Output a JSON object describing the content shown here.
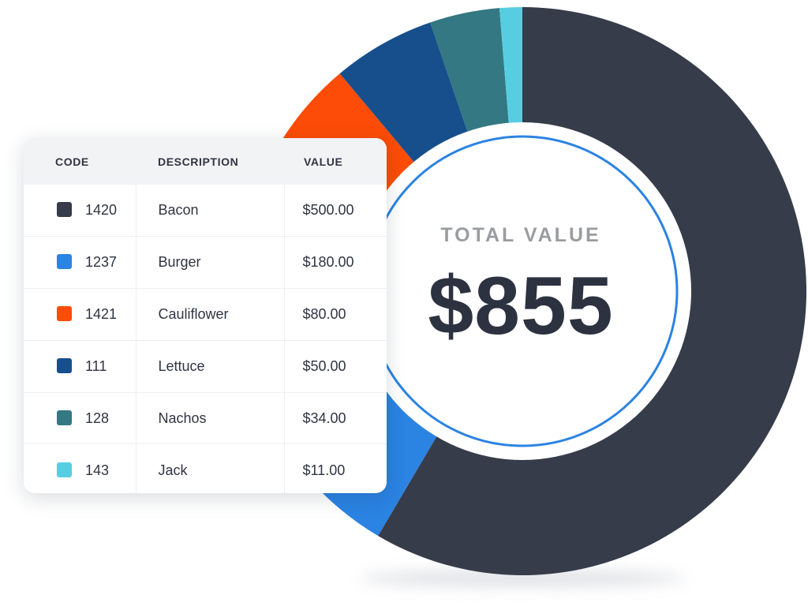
{
  "chart_data": {
    "type": "pie",
    "center_label": "TOTAL VALUE",
    "center_value": "$855",
    "columns": [
      "CODE",
      "DESCRIPTION",
      "VALUE"
    ],
    "rows": [
      {
        "code": "1420",
        "description": "Bacon",
        "value_label": "$500.00",
        "value": 500,
        "color": "#363c4a"
      },
      {
        "code": "1237",
        "description": "Burger",
        "value_label": "$180.00",
        "value": 180,
        "color": "#2b83e2"
      },
      {
        "code": "1421",
        "description": "Cauliflower",
        "value_label": "$80.00",
        "value": 80,
        "color": "#fd4c07"
      },
      {
        "code": "111",
        "description": "Lettuce",
        "value_label": "$50.00",
        "value": 50,
        "color": "#174f8c"
      },
      {
        "code": "128",
        "description": "Nachos",
        "value_label": "$34.00",
        "value": 34,
        "color": "#337882"
      },
      {
        "code": "143",
        "description": "Jack",
        "value_label": "$11.00",
        "value": 11,
        "color": "#57cde2"
      }
    ],
    "ring_accent_color": "#2b83e2"
  }
}
